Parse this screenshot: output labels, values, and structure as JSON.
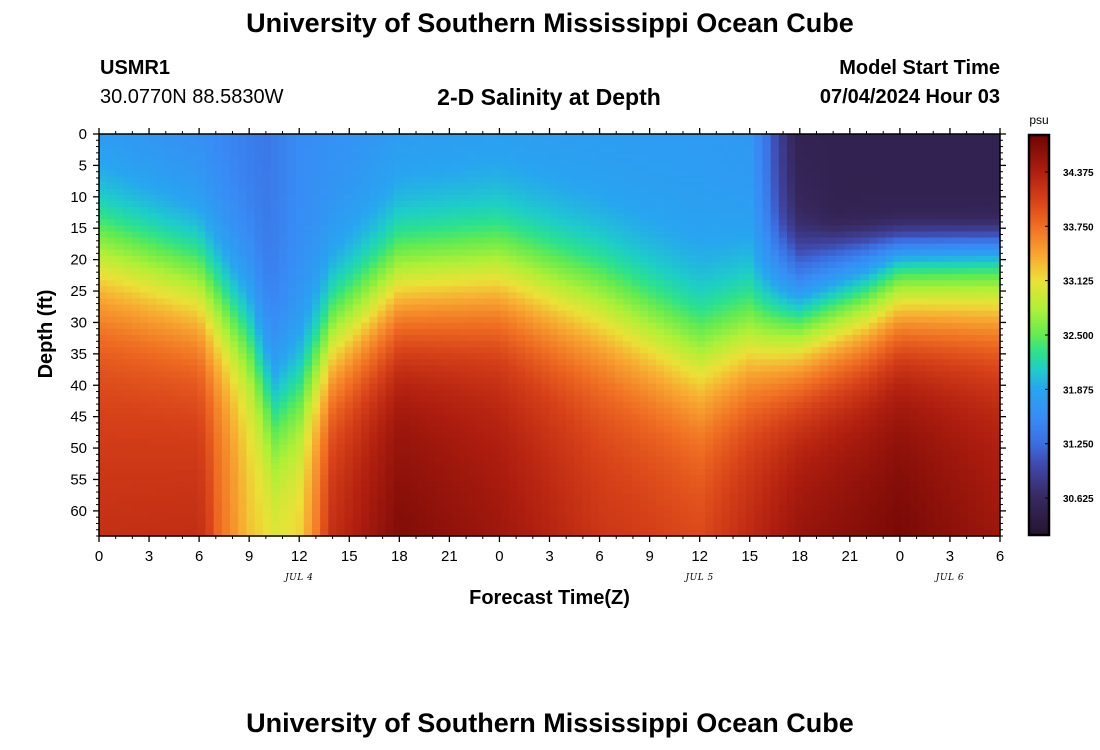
{
  "header": {
    "title": "University of Southern Mississippi Ocean Cube",
    "station": "USMR1",
    "coords": "30.0770N  88.5830W",
    "plot_title": "2-D Salinity at Depth",
    "model_start_label": "Model Start Time",
    "model_start_value": "07/04/2024 Hour 03"
  },
  "footer": {
    "title": "University of Southern Mississippi Ocean Cube"
  },
  "chart_data": {
    "type": "heatmap",
    "title": "2-D Salinity at Depth",
    "xlabel": "Forecast Time(Z)",
    "ylabel": "Depth (ft)",
    "x_hours_range": [
      0,
      54
    ],
    "y_depth_range": [
      0,
      64
    ],
    "y_inverted": true,
    "x_tick_labels": [
      "0",
      "3",
      "6",
      "9",
      "12",
      "15",
      "18",
      "21",
      "0",
      "3",
      "6",
      "9",
      "12",
      "15",
      "18",
      "21",
      "0",
      "3",
      "6"
    ],
    "y_tick_values": [
      0,
      5,
      10,
      15,
      20,
      25,
      30,
      35,
      40,
      45,
      50,
      55,
      60
    ],
    "date_labels": [
      {
        "text": "JUL 4",
        "hour": 12
      },
      {
        "text": "JUL 5",
        "hour": 36
      },
      {
        "text": "JUL 6",
        "hour": 51
      }
    ],
    "colorbar": {
      "unit": "psu",
      "range": [
        30.2,
        34.8
      ],
      "tick_values": [
        30.625,
        31.25,
        31.875,
        32.5,
        33.125,
        33.75,
        34.375
      ],
      "tick_labels": [
        "30.625",
        "31.250",
        "31.875",
        "32.500",
        "33.125",
        "33.750",
        "34.375"
      ]
    },
    "field_approximation": {
      "description": "salinity vs forecast hour (x) and depth ft (y)",
      "halocline_depth_ft": [
        [
          0,
          19
        ],
        [
          6,
          24
        ],
        [
          9,
          32
        ],
        [
          10.5,
          44
        ],
        [
          12,
          41
        ],
        [
          14,
          32
        ],
        [
          18,
          24
        ],
        [
          24,
          22
        ],
        [
          30,
          27
        ],
        [
          36,
          35
        ],
        [
          42,
          30
        ],
        [
          46,
          26
        ],
        [
          48,
          23
        ],
        [
          54,
          22
        ]
      ],
      "surface_psu": [
        [
          0,
          31.65
        ],
        [
          6,
          31.55
        ],
        [
          10,
          31.35
        ],
        [
          12,
          31.55
        ],
        [
          18,
          31.7
        ],
        [
          36,
          31.75
        ],
        [
          39,
          31.7
        ],
        [
          40,
          31.3
        ],
        [
          42,
          30.5
        ],
        [
          54,
          30.55
        ]
      ],
      "deep_psu": [
        [
          0,
          34.0
        ],
        [
          6,
          34.05
        ],
        [
          9,
          33.25
        ],
        [
          10.5,
          33.1
        ],
        [
          12,
          33.2
        ],
        [
          14,
          34.1
        ],
        [
          18,
          34.5
        ],
        [
          24,
          34.3
        ],
        [
          30,
          34.0
        ],
        [
          36,
          33.9
        ],
        [
          42,
          34.4
        ],
        [
          48,
          34.55
        ],
        [
          54,
          34.3
        ]
      ],
      "fresh_lens_psu": 30.5
    }
  }
}
